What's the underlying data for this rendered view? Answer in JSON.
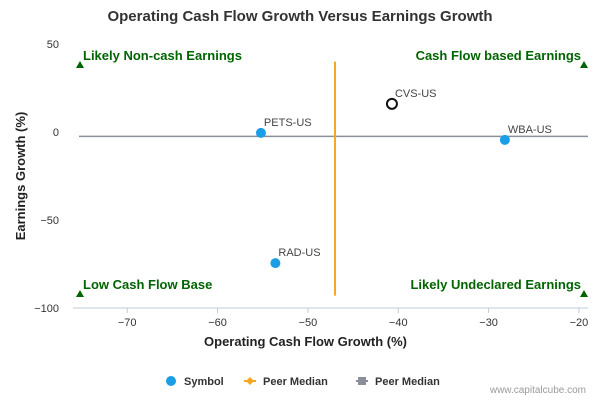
{
  "chart_data": {
    "type": "scatter",
    "title": "Operating Cash Flow Growth Versus Earnings Growth",
    "xlabel": "Operating Cash Flow Growth (%)",
    "ylabel": "Earnings Growth (%)",
    "xlim": [
      -76,
      -19
    ],
    "ylim": [
      -100,
      50
    ],
    "x_ticks": [
      -70,
      -60,
      -50,
      -40,
      -30,
      -20
    ],
    "y_ticks": [
      50,
      0,
      -50,
      -100
    ],
    "points": [
      {
        "label": "PETS-US",
        "x": -55.2,
        "y": -0.5,
        "style": "filled"
      },
      {
        "label": "CVS-US",
        "x": -40.7,
        "y": 16,
        "style": "hollow"
      },
      {
        "label": "WBA-US",
        "x": -28.2,
        "y": -4.5,
        "style": "filled"
      },
      {
        "label": "RAD-US",
        "x": -53.6,
        "y": -74.5,
        "style": "filled"
      }
    ],
    "peer_median_x": -47,
    "peer_median_y": -2.5,
    "quadrants": {
      "top_left": "Likely Non-cash Earnings",
      "top_right": "Cash Flow based Earnings",
      "bottom_left": "Low Cash Flow Base",
      "bottom_right": "Likely Undeclared Earnings"
    },
    "legend": [
      {
        "label": "Symbol",
        "marker": "dot",
        "color": "#1a9ee6"
      },
      {
        "label": "Peer Median",
        "marker": "diamond",
        "color": "#f5a623"
      },
      {
        "label": "Peer Median",
        "marker": "square",
        "color": "#8a8f99"
      }
    ],
    "legend_placement": "bottom",
    "grid": false
  },
  "colors": {
    "point": "#1a9ee6",
    "vertical_median": "#f5a623",
    "horizontal_median": "#8a8f99",
    "quadrant_text": "#006400",
    "axis": "#c0c8d8",
    "tick_text": "#333333"
  },
  "watermark": "www.capitalcube.com"
}
